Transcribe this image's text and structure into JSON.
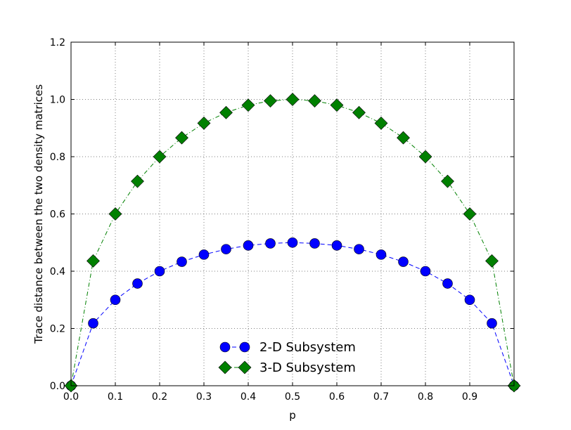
{
  "chart_data": {
    "type": "line",
    "xlabel": "p",
    "ylabel": "Trace distance between the two density matrices",
    "xlim": [
      0.0,
      1.0
    ],
    "ylim": [
      0.0,
      1.2
    ],
    "xticks": [
      "0.0",
      "0.1",
      "0.2",
      "0.3",
      "0.4",
      "0.5",
      "0.6",
      "0.7",
      "0.8",
      "0.9"
    ],
    "yticks": [
      "0.0",
      "0.2",
      "0.4",
      "0.6",
      "0.8",
      "1.0",
      "1.2"
    ],
    "grid": true,
    "legend_position": "bottom-center",
    "x": [
      0.0,
      0.05,
      0.1,
      0.15,
      0.2,
      0.25,
      0.3,
      0.35,
      0.4,
      0.45,
      0.5,
      0.55,
      0.6,
      0.65,
      0.7,
      0.75,
      0.8,
      0.85,
      0.9,
      0.95,
      1.0
    ],
    "series": [
      {
        "name": "2-D Subsystem",
        "color": "#0000ff",
        "marker": "circle",
        "line_style": "dashed",
        "values": [
          0.0,
          0.218,
          0.3,
          0.357,
          0.4,
          0.433,
          0.458,
          0.477,
          0.49,
          0.497,
          0.5,
          0.497,
          0.49,
          0.477,
          0.458,
          0.433,
          0.4,
          0.357,
          0.3,
          0.218,
          0.0
        ]
      },
      {
        "name": "3-D Subsystem",
        "color": "#008000",
        "marker": "diamond",
        "line_style": "dash-dot",
        "values": [
          0.0,
          0.436,
          0.6,
          0.714,
          0.8,
          0.866,
          0.917,
          0.954,
          0.98,
          0.995,
          1.0,
          0.995,
          0.98,
          0.954,
          0.917,
          0.866,
          0.8,
          0.714,
          0.6,
          0.436,
          0.0
        ]
      }
    ]
  }
}
